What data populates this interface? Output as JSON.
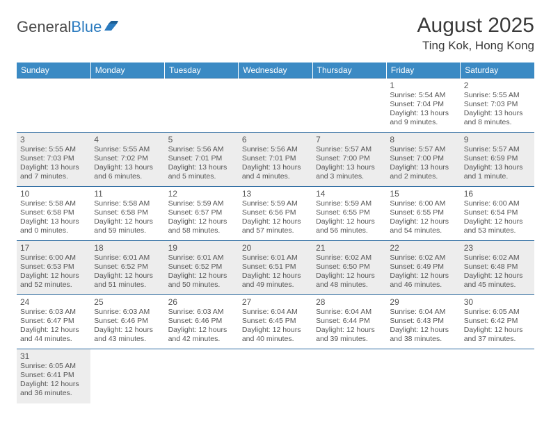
{
  "brand": {
    "part1": "General",
    "part2": "Blue"
  },
  "title": {
    "month": "August 2025",
    "location": "Ting Kok, Hong Kong"
  },
  "colors": {
    "header_bg": "#3b8ac4",
    "header_text": "#ffffff",
    "row_border": "#2b6aa0",
    "text": "#4a4a4a",
    "row_alt": "#ededed"
  },
  "weekdays": [
    "Sunday",
    "Monday",
    "Tuesday",
    "Wednesday",
    "Thursday",
    "Friday",
    "Saturday"
  ],
  "days": {
    "1": {
      "sr": "5:54 AM",
      "ss": "7:04 PM",
      "dl": "13 hours and 9 minutes."
    },
    "2": {
      "sr": "5:55 AM",
      "ss": "7:03 PM",
      "dl": "13 hours and 8 minutes."
    },
    "3": {
      "sr": "5:55 AM",
      "ss": "7:03 PM",
      "dl": "13 hours and 7 minutes."
    },
    "4": {
      "sr": "5:55 AM",
      "ss": "7:02 PM",
      "dl": "13 hours and 6 minutes."
    },
    "5": {
      "sr": "5:56 AM",
      "ss": "7:01 PM",
      "dl": "13 hours and 5 minutes."
    },
    "6": {
      "sr": "5:56 AM",
      "ss": "7:01 PM",
      "dl": "13 hours and 4 minutes."
    },
    "7": {
      "sr": "5:57 AM",
      "ss": "7:00 PM",
      "dl": "13 hours and 3 minutes."
    },
    "8": {
      "sr": "5:57 AM",
      "ss": "7:00 PM",
      "dl": "13 hours and 2 minutes."
    },
    "9": {
      "sr": "5:57 AM",
      "ss": "6:59 PM",
      "dl": "13 hours and 1 minute."
    },
    "10": {
      "sr": "5:58 AM",
      "ss": "6:58 PM",
      "dl": "13 hours and 0 minutes."
    },
    "11": {
      "sr": "5:58 AM",
      "ss": "6:58 PM",
      "dl": "12 hours and 59 minutes."
    },
    "12": {
      "sr": "5:59 AM",
      "ss": "6:57 PM",
      "dl": "12 hours and 58 minutes."
    },
    "13": {
      "sr": "5:59 AM",
      "ss": "6:56 PM",
      "dl": "12 hours and 57 minutes."
    },
    "14": {
      "sr": "5:59 AM",
      "ss": "6:55 PM",
      "dl": "12 hours and 56 minutes."
    },
    "15": {
      "sr": "6:00 AM",
      "ss": "6:55 PM",
      "dl": "12 hours and 54 minutes."
    },
    "16": {
      "sr": "6:00 AM",
      "ss": "6:54 PM",
      "dl": "12 hours and 53 minutes."
    },
    "17": {
      "sr": "6:00 AM",
      "ss": "6:53 PM",
      "dl": "12 hours and 52 minutes."
    },
    "18": {
      "sr": "6:01 AM",
      "ss": "6:52 PM",
      "dl": "12 hours and 51 minutes."
    },
    "19": {
      "sr": "6:01 AM",
      "ss": "6:52 PM",
      "dl": "12 hours and 50 minutes."
    },
    "20": {
      "sr": "6:01 AM",
      "ss": "6:51 PM",
      "dl": "12 hours and 49 minutes."
    },
    "21": {
      "sr": "6:02 AM",
      "ss": "6:50 PM",
      "dl": "12 hours and 48 minutes."
    },
    "22": {
      "sr": "6:02 AM",
      "ss": "6:49 PM",
      "dl": "12 hours and 46 minutes."
    },
    "23": {
      "sr": "6:02 AM",
      "ss": "6:48 PM",
      "dl": "12 hours and 45 minutes."
    },
    "24": {
      "sr": "6:03 AM",
      "ss": "6:47 PM",
      "dl": "12 hours and 44 minutes."
    },
    "25": {
      "sr": "6:03 AM",
      "ss": "6:46 PM",
      "dl": "12 hours and 43 minutes."
    },
    "26": {
      "sr": "6:03 AM",
      "ss": "6:46 PM",
      "dl": "12 hours and 42 minutes."
    },
    "27": {
      "sr": "6:04 AM",
      "ss": "6:45 PM",
      "dl": "12 hours and 40 minutes."
    },
    "28": {
      "sr": "6:04 AM",
      "ss": "6:44 PM",
      "dl": "12 hours and 39 minutes."
    },
    "29": {
      "sr": "6:04 AM",
      "ss": "6:43 PM",
      "dl": "12 hours and 38 minutes."
    },
    "30": {
      "sr": "6:05 AM",
      "ss": "6:42 PM",
      "dl": "12 hours and 37 minutes."
    },
    "31": {
      "sr": "6:05 AM",
      "ss": "6:41 PM",
      "dl": "12 hours and 36 minutes."
    }
  },
  "layout": {
    "first_weekday_index": 5,
    "num_days": 31,
    "labels": {
      "sunrise_prefix": "Sunrise: ",
      "sunset_prefix": "Sunset: ",
      "daylight_prefix": "Daylight: "
    }
  }
}
